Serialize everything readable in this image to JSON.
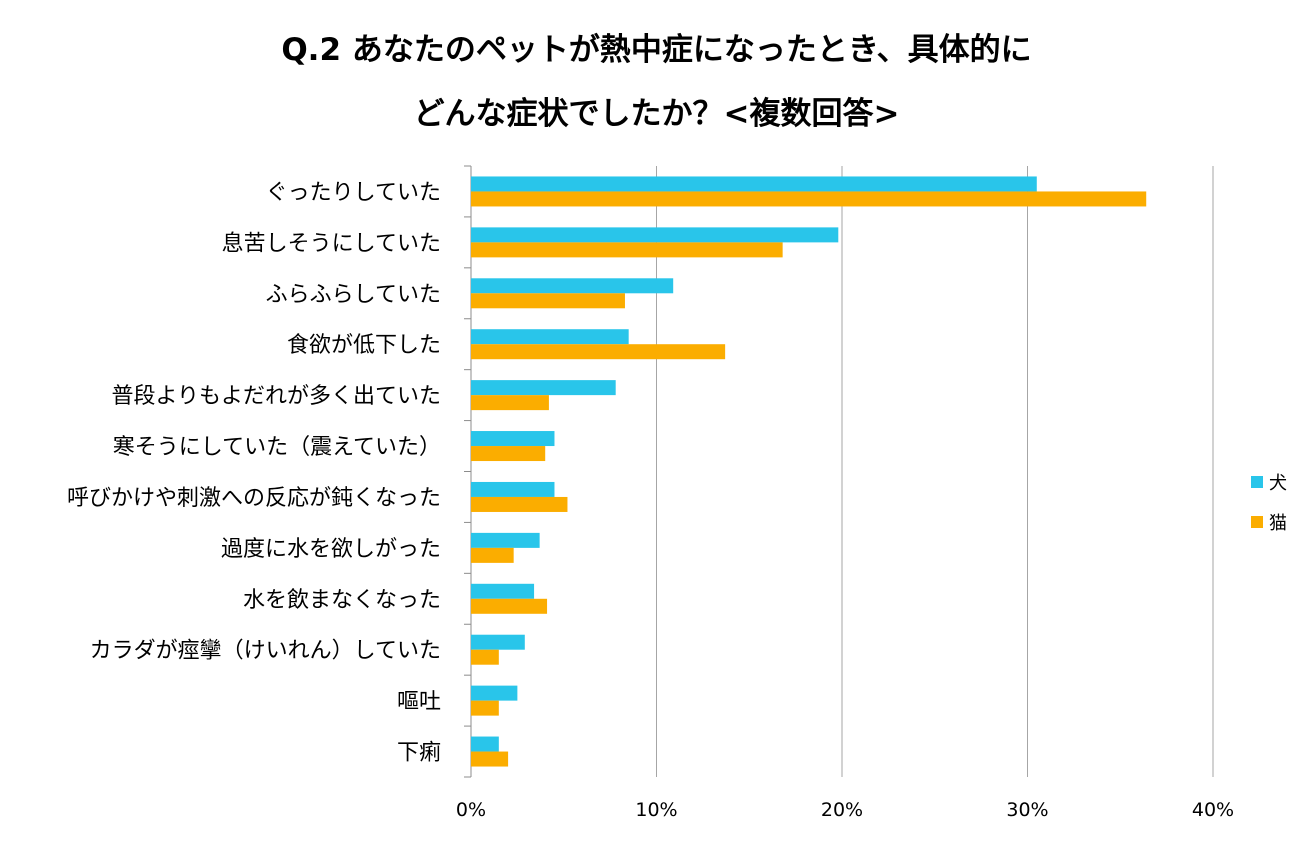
{
  "chart_data": {
    "type": "bar",
    "orientation": "horizontal",
    "title_lines": [
      "Q.2 あなたのペットが熱中症になったとき、具体的に",
      "どんな症状でしたか？<複数回答>"
    ],
    "categories": [
      "ぐったりしていた",
      "息苦しそうにしていた",
      "ふらふらしていた",
      "食欲が低下した",
      "普段よりもよだれが多く出ていた",
      "寒そうにしていた（震えていた）",
      "呼びかけや刺激への反応が鈍くなった",
      "過度に水を欲しがった",
      "水を飲まなくなった",
      "カラダが痙攣（けいれん）していた",
      "嘔吐",
      "下痢"
    ],
    "series": [
      {
        "name": "犬",
        "color": "#29c5ea",
        "values": [
          30.5,
          19.8,
          10.9,
          8.5,
          7.8,
          4.5,
          4.5,
          3.7,
          3.4,
          2.9,
          2.5,
          1.5
        ]
      },
      {
        "name": "猫",
        "color": "#fbad00",
        "values": [
          36.4,
          16.8,
          8.3,
          13.7,
          4.2,
          4.0,
          5.2,
          2.3,
          4.1,
          1.5,
          1.5,
          2.0
        ]
      }
    ],
    "xlim": [
      0,
      40
    ],
    "xticks": [
      0,
      10,
      20,
      30,
      40
    ],
    "xtick_labels": [
      "0%",
      "10%",
      "20%",
      "30%",
      "40%"
    ],
    "grid": true,
    "legend_position": "right"
  }
}
